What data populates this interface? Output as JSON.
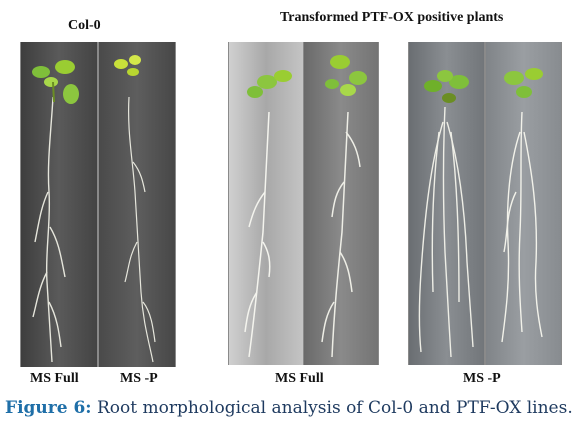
{
  "headers": {
    "control": "Col-0",
    "transformed": "Transformed PTF-OX positive plants"
  },
  "panel_labels": {
    "col_ms_full": "MS Full",
    "col_ms_minus_p": "MS -P",
    "tr_ms_full": "MS Full",
    "tr_ms_minus_p": "MS -P"
  },
  "caption": {
    "figure_label": "Figure 6:",
    "text": "Root morphological analysis of Col-0 and PTF-OX lines."
  },
  "colors": {
    "leaf": "#9acd32",
    "leaf_dark": "#6b8e23",
    "root": "#e8e8e0",
    "panel_dark": "#4a4a4a",
    "panel_light": "#bdbdbd",
    "caption": "#1f6fa8"
  }
}
